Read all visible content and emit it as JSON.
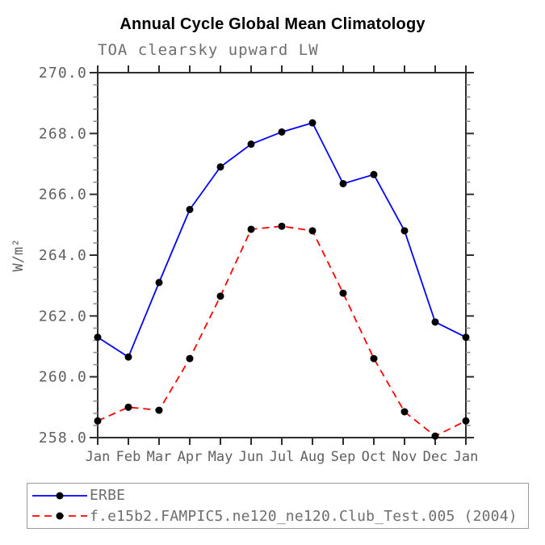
{
  "header": {
    "title": "Annual Cycle Global Mean Climatology",
    "subtitle": "TOA clearsky upward LW"
  },
  "chart_data": {
    "type": "line",
    "title": "Annual Cycle Global Mean Climatology",
    "subtitle": "TOA clearsky upward LW",
    "xlabel": "",
    "ylabel": "W/m²",
    "categories": [
      "Jan",
      "Feb",
      "Mar",
      "Apr",
      "May",
      "Jun",
      "Jul",
      "Aug",
      "Sep",
      "Oct",
      "Nov",
      "Dec",
      "Jan"
    ],
    "ylim": [
      258.0,
      270.0
    ],
    "y_major_step": 2.0,
    "y_minor_step": 0.4,
    "y_tick_labels": [
      "258.0",
      "260.0",
      "262.0",
      "264.0",
      "266.0",
      "268.0",
      "270.0"
    ],
    "grid": false,
    "legend_position": "bottom-left-box",
    "series": [
      {
        "name": "ERBE",
        "color": "#0000ff",
        "style": "solid",
        "marker": "filled-circle",
        "marker_color": "#000000",
        "values": [
          261.3,
          260.65,
          263.1,
          265.5,
          266.9,
          267.65,
          268.05,
          268.35,
          266.35,
          266.65,
          264.8,
          261.8,
          261.3
        ]
      },
      {
        "name": "f.e15b2.FAMPIC5.ne120_ne120.Club_Test.005 (2004)",
        "color": "#ff0000",
        "style": "dashed",
        "marker": "filled-circle",
        "marker_color": "#000000",
        "values": [
          258.55,
          259.0,
          258.9,
          260.6,
          262.65,
          264.85,
          264.95,
          264.8,
          262.75,
          260.6,
          258.85,
          258.05,
          258.55
        ]
      }
    ]
  },
  "colors": {
    "axis": "#2e2e2e",
    "minor_tick": "#8a8a8a",
    "tick_label": "#5f5f5f",
    "subtitle_text": "#6e6e6e",
    "legend_text": "#6e6e6e",
    "legend_border": "#9a9a9a",
    "title_text": "#000000",
    "marker": "#000000"
  }
}
